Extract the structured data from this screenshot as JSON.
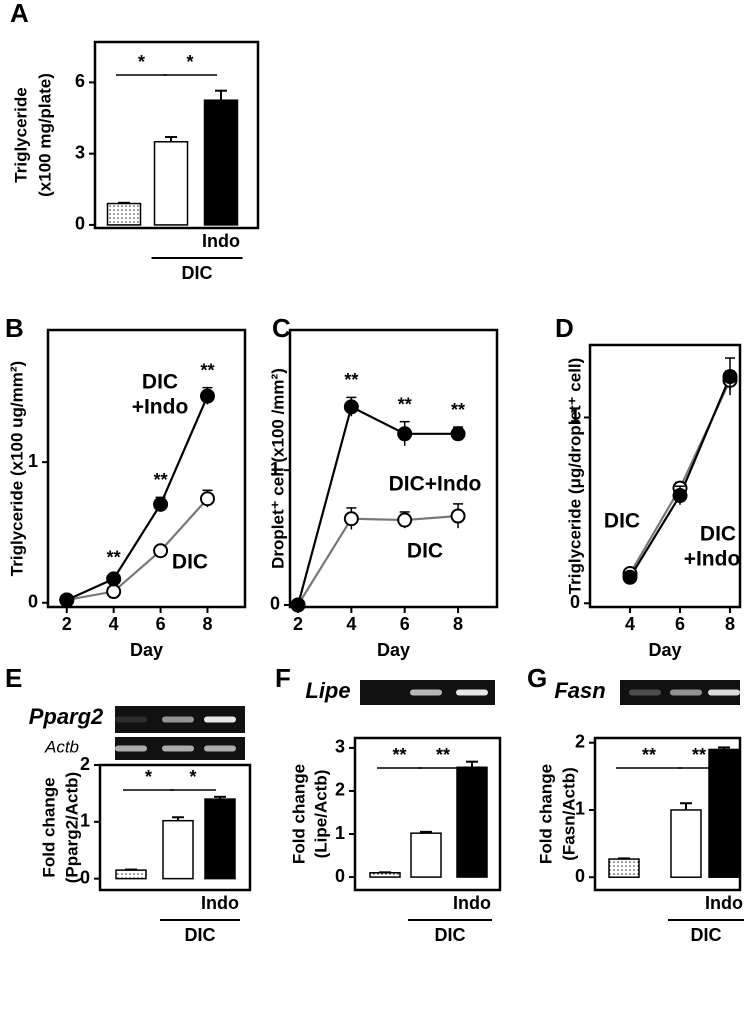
{
  "chart_data": [
    {
      "type": "bar",
      "panel_label": "A",
      "ylabel": [
        "Triglyceride",
        "(x100 mg/plate)"
      ],
      "values": [
        0.9,
        3.5,
        5.25
      ],
      "errors": [
        0.03,
        0.2,
        0.4
      ],
      "fills": [
        "dotted",
        "#ffffff",
        "#000000"
      ],
      "ylim": [
        -0.13,
        7.7
      ],
      "yticks": [
        0,
        3,
        6
      ],
      "significance": [
        "*",
        "*"
      ],
      "treatment_label": "Indo",
      "group_label": "DIC"
    },
    {
      "type": "line",
      "panel_label": "B",
      "ylabel": [
        "Triglyceride (x100 ug/mm²)"
      ],
      "xlabel": "Day",
      "x": [
        2,
        4,
        6,
        8
      ],
      "xlim": [
        1.2,
        9.6
      ],
      "xticks": [
        2,
        4,
        6,
        8
      ],
      "ylim": [
        -0.03,
        1.94
      ],
      "yticks": [
        0,
        1
      ],
      "series": [
        {
          "name": [
            "DIC",
            "+Indo"
          ],
          "marker": "filled",
          "color": "#000000",
          "values": [
            0.02,
            0.17,
            0.7,
            1.47
          ],
          "errors": [
            0.01,
            0.03,
            0.05,
            0.06
          ]
        },
        {
          "name": [
            "DIC"
          ],
          "marker": "open",
          "color": "#777777",
          "values": [
            0.02,
            0.08,
            0.37,
            0.74
          ],
          "errors": [
            0.01,
            0.03,
            0.03,
            0.06
          ]
        }
      ],
      "annotations": [
        {
          "text": "**",
          "x": 4
        },
        {
          "text": "**",
          "x": 6
        },
        {
          "text": "**",
          "x": 8
        }
      ]
    },
    {
      "type": "line",
      "panel_label": "C",
      "ylabel": [
        "Droplet⁺ cell (x100 /mm²)"
      ],
      "xlabel": "Day",
      "x": [
        2,
        4,
        6,
        8
      ],
      "xlim": [
        1.7,
        9.46
      ],
      "xticks": [
        2,
        4,
        6,
        8
      ],
      "ylim": [
        -0.015,
        2.04
      ],
      "yticks": [
        0,
        1
      ],
      "series": [
        {
          "name": [
            "DIC+Indo"
          ],
          "marker": "filled",
          "color": "#000000",
          "values": [
            0,
            1.47,
            1.27,
            1.27
          ],
          "errors": [
            0,
            0.07,
            0.09,
            0.05
          ]
        },
        {
          "name": [
            "DIC"
          ],
          "marker": "open",
          "color": "#777777",
          "values": [
            0,
            0.64,
            0.63,
            0.66
          ],
          "errors": [
            0,
            0.08,
            0.06,
            0.09
          ]
        }
      ],
      "annotations": [
        {
          "text": "**",
          "x": 4
        },
        {
          "text": "**",
          "x": 6
        },
        {
          "text": "**",
          "x": 8
        }
      ]
    },
    {
      "type": "line",
      "panel_label": "D",
      "ylabel": [
        "Triglyceride (μg/droplet⁺ cell)"
      ],
      "xlabel": "Day",
      "x": [
        4,
        6,
        8
      ],
      "xlim": [
        2.4,
        8.4
      ],
      "xticks": [
        4,
        6,
        8
      ],
      "ylim": [
        -0.02,
        1.39
      ],
      "yticks": [
        0,
        1
      ],
      "series": [
        {
          "name": [
            "DIC",
            "+Indo"
          ],
          "marker": "filled",
          "color": "#000000",
          "values": [
            0.14,
            0.58,
            1.22
          ],
          "errors": [
            0.02,
            0.05,
            0.1
          ]
        },
        {
          "name": [
            "DIC"
          ],
          "marker": "open",
          "color": "#777777",
          "values": [
            0.16,
            0.62,
            1.2
          ],
          "errors": [
            0.02,
            0.03,
            0.05
          ]
        }
      ],
      "annotations": []
    },
    {
      "type": "bar",
      "panel_label": "E",
      "gel_labels": [
        "Pparg2",
        "Actb"
      ],
      "ylabel": [
        "Fold change",
        "(Pparg2/Actb)"
      ],
      "values": [
        0.15,
        1.02,
        1.4
      ],
      "errors": [
        0.01,
        0.06,
        0.04
      ],
      "fills": [
        "dotted",
        "#ffffff",
        "#000000"
      ],
      "ylim": [
        -0.2,
        2.0
      ],
      "yticks": [
        0,
        1,
        2
      ],
      "significance": [
        "*",
        "*"
      ],
      "treatment_label": "Indo",
      "group_label": "DIC"
    },
    {
      "type": "bar",
      "panel_label": "F",
      "gel_labels": [
        "Lipe"
      ],
      "ylabel": [
        "Fold change",
        "(Lipe/Actb)"
      ],
      "values": [
        0.1,
        1.02,
        2.55
      ],
      "errors": [
        0.01,
        0.03,
        0.13
      ],
      "fills": [
        "dotted",
        "#ffffff",
        "#000000"
      ],
      "ylim": [
        -0.3,
        3.23
      ],
      "yticks": [
        0,
        1,
        2,
        3
      ],
      "significance": [
        "**",
        "**"
      ],
      "treatment_label": "Indo",
      "group_label": "DIC"
    },
    {
      "type": "bar",
      "panel_label": "G",
      "gel_labels": [
        "Fasn"
      ],
      "ylabel": [
        "Fold change",
        "(Fasn/Actb)"
      ],
      "values": [
        0.27,
        1.0,
        1.9
      ],
      "errors": [
        0.01,
        0.1,
        0.03
      ],
      "fills": [
        "dotted",
        "#ffffff",
        "#000000"
      ],
      "ylim": [
        -0.19,
        2.07
      ],
      "yticks": [
        0,
        1,
        2
      ],
      "significance": [
        "**",
        "**"
      ],
      "treatment_label": "Indo",
      "group_label": "DIC"
    }
  ]
}
